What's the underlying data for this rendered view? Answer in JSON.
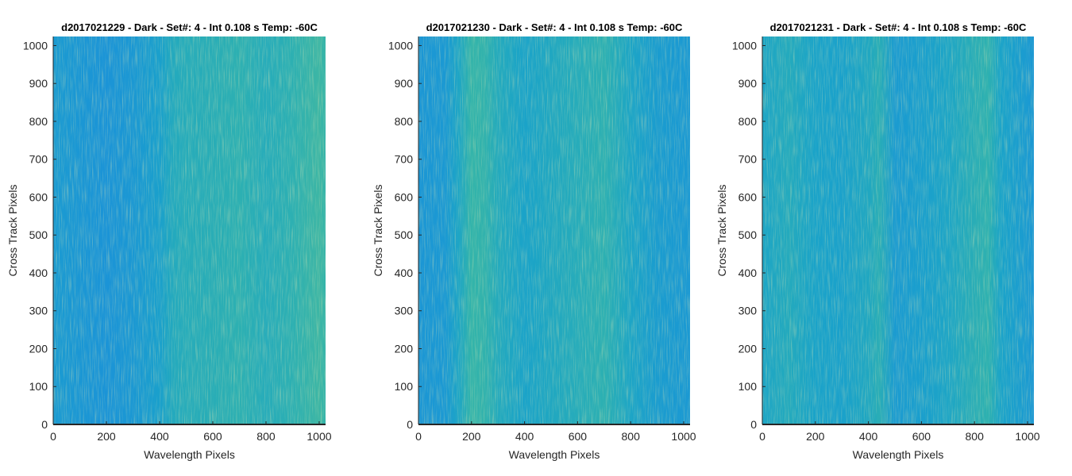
{
  "figure": {
    "background": "#ffffff",
    "colormap": [
      "#1f7fdc",
      "#1b92d9",
      "#1aa3c9",
      "#33b4aa",
      "#79c08a",
      "#b6c96c"
    ]
  },
  "chart_data": [
    {
      "type": "heatmap",
      "title": "d2017021229 - Dark - Set#: 4 - Int 0.108 s Temp: -60C",
      "xlabel": "Wavelength Pixels",
      "ylabel": "Cross Track Pixels",
      "xlim": [
        0,
        1024
      ],
      "ylim": [
        0,
        1024
      ],
      "xticks": [
        0,
        200,
        400,
        600,
        800,
        1000
      ],
      "yticks": [
        0,
        100,
        200,
        300,
        400,
        500,
        600,
        700,
        800,
        900,
        1000
      ],
      "column_profile": {
        "x": [
          0,
          100,
          200,
          300,
          400,
          450,
          500,
          600,
          700,
          800,
          900,
          1000,
          1024
        ],
        "intensity": [
          0.3,
          0.26,
          0.22,
          0.27,
          0.36,
          0.47,
          0.5,
          0.52,
          0.55,
          0.5,
          0.55,
          0.63,
          0.6
        ]
      }
    },
    {
      "type": "heatmap",
      "title": "d2017021230 - Dark - Set#: 4 - Int 0.108 s Temp: -60C",
      "xlabel": "Wavelength Pixels",
      "ylabel": "Cross Track Pixels",
      "xlim": [
        0,
        1024
      ],
      "ylim": [
        0,
        1024
      ],
      "xticks": [
        0,
        200,
        400,
        600,
        800,
        1000
      ],
      "yticks": [
        0,
        100,
        200,
        300,
        400,
        500,
        600,
        700,
        800,
        900,
        1000
      ],
      "column_profile": {
        "x": [
          0,
          100,
          150,
          200,
          250,
          300,
          400,
          500,
          600,
          700,
          800,
          900,
          1024
        ],
        "intensity": [
          0.25,
          0.28,
          0.42,
          0.6,
          0.58,
          0.48,
          0.4,
          0.45,
          0.5,
          0.55,
          0.42,
          0.32,
          0.28
        ]
      }
    },
    {
      "type": "heatmap",
      "title": "d2017021231 - Dark - Set#: 4 - Int 0.108 s Temp: -60C",
      "xlabel": "Wavelength Pixels",
      "ylabel": "Cross Track Pixels",
      "xlim": [
        0,
        1024
      ],
      "ylim": [
        0,
        1024
      ],
      "xticks": [
        0,
        200,
        400,
        600,
        800,
        1000
      ],
      "yticks": [
        0,
        100,
        200,
        300,
        400,
        500,
        600,
        700,
        800,
        900,
        1000
      ],
      "column_profile": {
        "x": [
          0,
          100,
          200,
          300,
          400,
          440,
          500,
          600,
          700,
          800,
          850,
          900,
          1000,
          1024
        ],
        "intensity": [
          0.42,
          0.48,
          0.4,
          0.38,
          0.45,
          0.52,
          0.3,
          0.35,
          0.42,
          0.52,
          0.56,
          0.4,
          0.3,
          0.26
        ]
      }
    }
  ]
}
